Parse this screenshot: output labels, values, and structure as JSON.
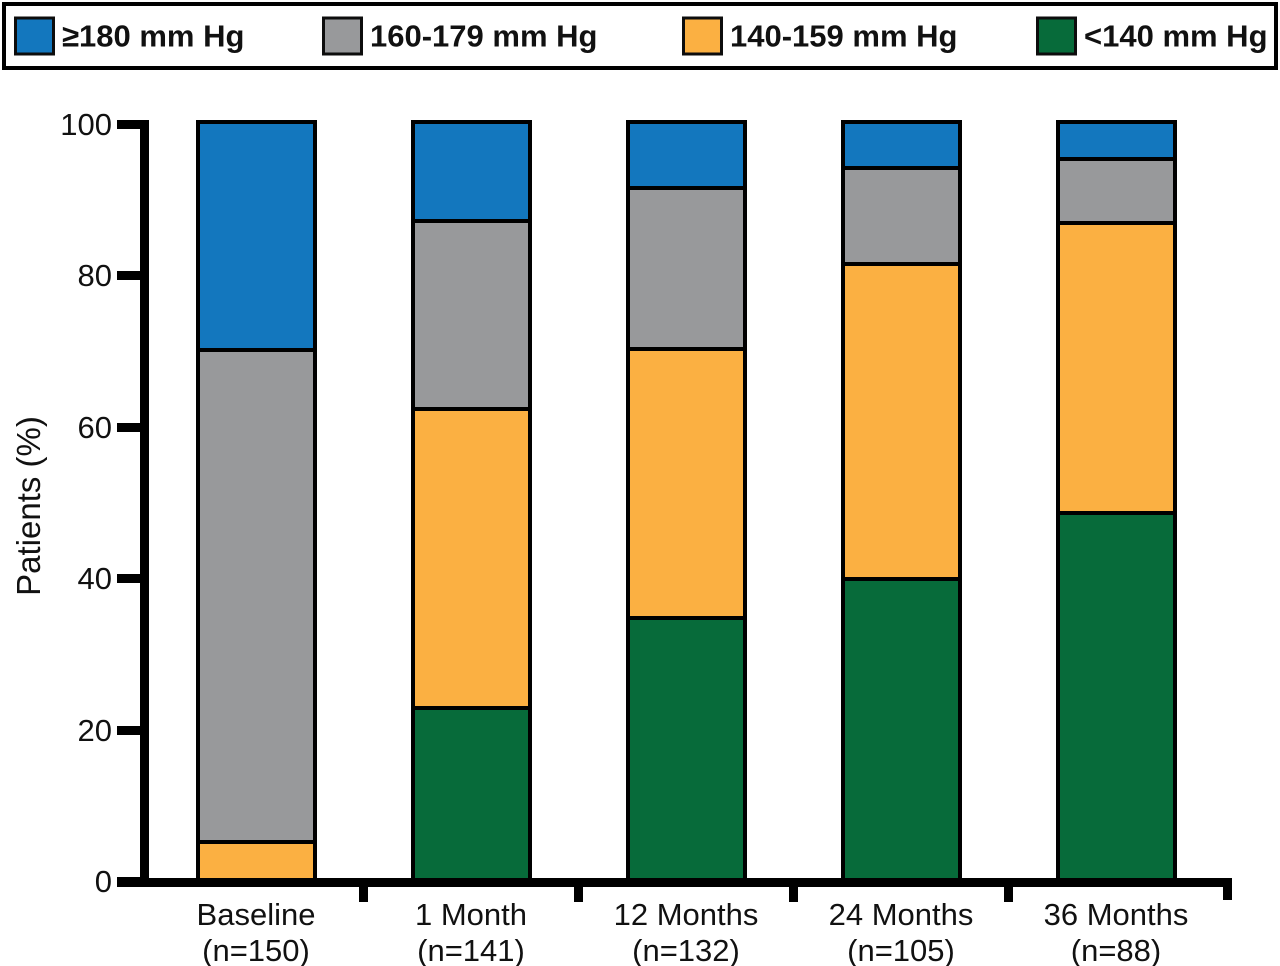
{
  "legend": {
    "items": [
      {
        "label": "≥180 mm Hg",
        "color": "#1377be"
      },
      {
        "label": "160-179 mm Hg",
        "color": "#98999b"
      },
      {
        "label": "140-159 mm Hg",
        "color": "#fbb042"
      },
      {
        "label": "<140 mm Hg",
        "color": "#076b3a"
      }
    ]
  },
  "y_axis": {
    "label": "Patients (%)",
    "ticks": [
      "100",
      "80",
      "60",
      "40",
      "20",
      "0"
    ]
  },
  "x_axis": {
    "categories": [
      {
        "label": "Baseline",
        "n": "(n=150)"
      },
      {
        "label": "1 Month",
        "n": "(n=141)"
      },
      {
        "label": "12 Months",
        "n": "(n=132)"
      },
      {
        "label": "24 Months",
        "n": "(n=105)"
      },
      {
        "label": "36 Months",
        "n": "(n=88)"
      }
    ]
  },
  "chart_data": {
    "type": "bar",
    "stacked": true,
    "orientation": "vertical",
    "title": "",
    "xlabel": "",
    "ylabel": "Patients (%)",
    "ylim": [
      0,
      100
    ],
    "grid": false,
    "legend_position": "top",
    "categories": [
      "Baseline (n=150)",
      "1 Month (n=141)",
      "12 Months (n=132)",
      "24 Months (n=105)",
      "36 Months (n=88)"
    ],
    "stack_order_top_to_bottom": [
      "≥180 mm Hg",
      "160-179 mm Hg",
      "140-159 mm Hg",
      "<140 mm Hg"
    ],
    "series": [
      {
        "name": "≥180 mm Hg",
        "color": "#1377be",
        "values": [
          30.0,
          12.8,
          8.3,
          5.7,
          4.5
        ]
      },
      {
        "name": "160-179 mm Hg",
        "color": "#98999b",
        "values": [
          65.5,
          24.8,
          21.2,
          12.4,
          8.0
        ]
      },
      {
        "name": "140-159 mm Hg",
        "color": "#fbb042",
        "values": [
          4.5,
          39.7,
          35.6,
          41.9,
          38.6
        ]
      },
      {
        "name": "<140 mm Hg",
        "color": "#076b3a",
        "values": [
          0.0,
          22.7,
          34.8,
          40.0,
          48.9
        ]
      }
    ]
  }
}
